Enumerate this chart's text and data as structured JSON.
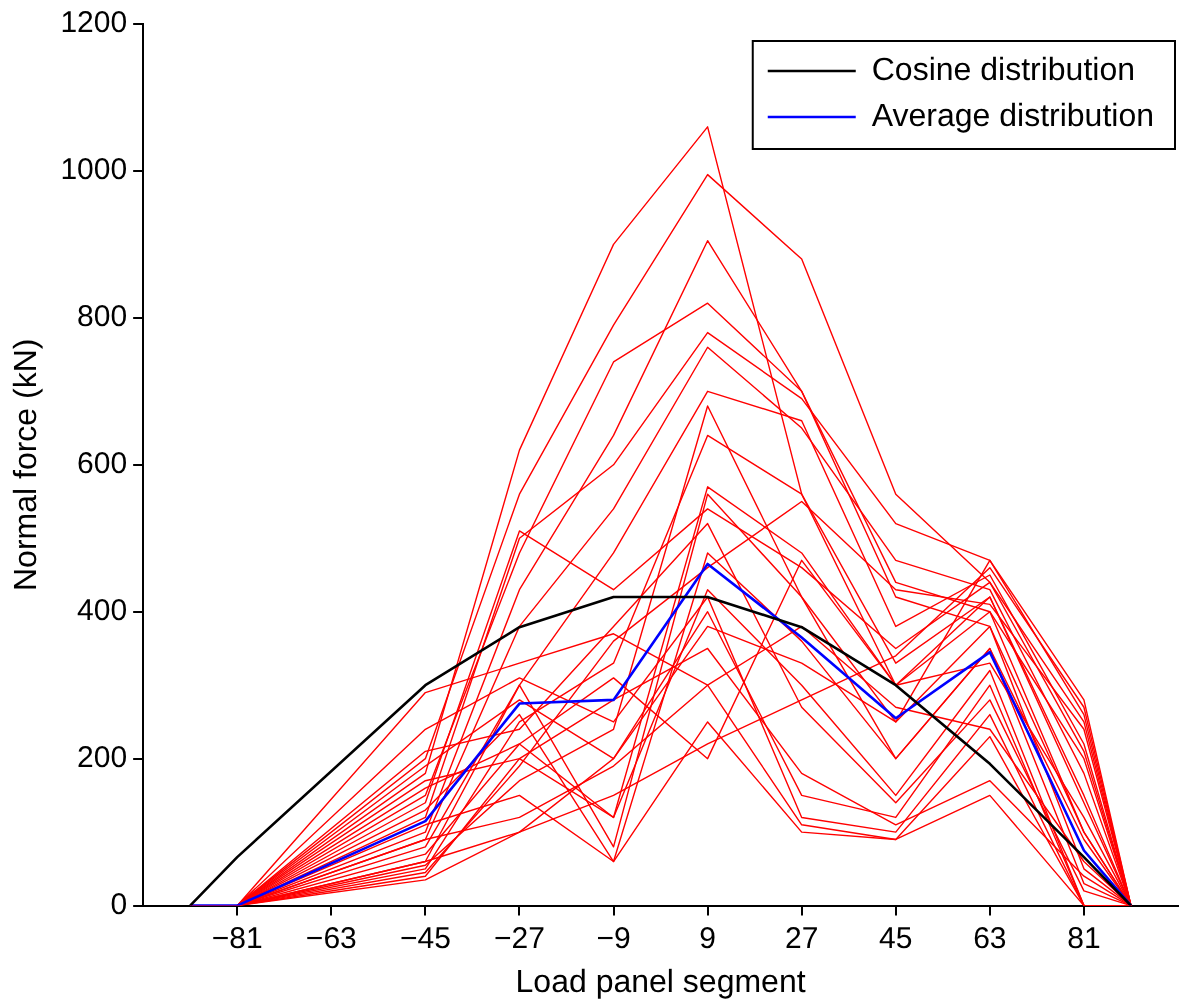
{
  "chart_data": {
    "type": "line",
    "xlabel": "Load panel segment",
    "ylabel": "Normal force (kN)",
    "x": [
      -90,
      -81,
      -45,
      -27,
      -9,
      9,
      27,
      45,
      63,
      81,
      90
    ],
    "xlim": [
      -99,
      99
    ],
    "xticks": [
      -81,
      -63,
      -45,
      -27,
      -9,
      9,
      27,
      45,
      63,
      81
    ],
    "ylim": [
      0,
      1200
    ],
    "yticks": [
      0,
      200,
      400,
      600,
      800,
      1000,
      1200
    ],
    "grid": false,
    "legend": "top right",
    "marker": "none",
    "line_style": "solid",
    "series": [
      {
        "color": "#ff0000",
        "values": [
          0,
          0,
          180,
          620,
          900,
          1060,
          560,
          300,
          420,
          150,
          0
        ]
      },
      {
        "color": "#ff0000",
        "values": [
          0,
          0,
          200,
          560,
          790,
          995,
          880,
          560,
          440,
          250,
          0
        ]
      },
      {
        "color": "#ff0000",
        "values": [
          0,
          0,
          150,
          480,
          740,
          820,
          700,
          440,
          400,
          200,
          0
        ]
      },
      {
        "color": "#ff0000",
        "values": [
          0,
          0,
          100,
          430,
          640,
          905,
          700,
          420,
          380,
          100,
          0
        ]
      },
      {
        "color": "#ff0000",
        "values": [
          0,
          0,
          120,
          500,
          600,
          780,
          690,
          520,
          470,
          260,
          0
        ]
      },
      {
        "color": "#ff0000",
        "values": [
          0,
          0,
          90,
          380,
          540,
          760,
          650,
          470,
          430,
          180,
          0
        ]
      },
      {
        "color": "#ff0000",
        "values": [
          0,
          0,
          60,
          300,
          480,
          700,
          660,
          380,
          450,
          220,
          0
        ]
      },
      {
        "color": "#ff0000",
        "values": [
          0,
          0,
          50,
          250,
          330,
          640,
          560,
          330,
          420,
          140,
          0
        ]
      },
      {
        "color": "#ff0000",
        "values": [
          0,
          0,
          40,
          200,
          120,
          570,
          480,
          300,
          400,
          100,
          0
        ]
      },
      {
        "color": "#ff0000",
        "values": [
          0,
          0,
          80,
          300,
          80,
          560,
          420,
          250,
          380,
          50,
          0
        ]
      },
      {
        "color": "#ff0000",
        "values": [
          0,
          0,
          130,
          260,
          60,
          480,
          360,
          200,
          350,
          30,
          0
        ]
      },
      {
        "color": "#ff0000",
        "values": [
          0,
          0,
          160,
          220,
          120,
          430,
          300,
          150,
          320,
          0,
          0
        ]
      },
      {
        "color": "#ff0000",
        "values": [
          0,
          0,
          190,
          280,
          200,
          400,
          150,
          120,
          300,
          0,
          0
        ]
      },
      {
        "color": "#ff0000",
        "values": [
          0,
          0,
          240,
          310,
          250,
          420,
          120,
          100,
          260,
          0,
          0
        ]
      },
      {
        "color": "#ff0000",
        "values": [
          0,
          0,
          290,
          330,
          370,
          300,
          110,
          90,
          230,
          0,
          0
        ]
      },
      {
        "color": "#ff0000",
        "values": [
          0,
          0,
          210,
          240,
          380,
          520,
          270,
          140,
          280,
          20,
          0
        ]
      },
      {
        "color": "#ff0000",
        "values": [
          0,
          0,
          170,
          200,
          280,
          350,
          180,
          110,
          170,
          40,
          0
        ]
      },
      {
        "color": "#ff0000",
        "values": [
          0,
          0,
          110,
          150,
          60,
          250,
          100,
          90,
          150,
          0,
          0
        ]
      },
      {
        "color": "#ff0000",
        "values": [
          0,
          0,
          60,
          100,
          200,
          380,
          330,
          250,
          470,
          280,
          0
        ]
      },
      {
        "color": "#ff0000",
        "values": [
          0,
          0,
          35,
          100,
          150,
          220,
          280,
          340,
          460,
          270,
          0
        ]
      },
      {
        "color": "#ff0000",
        "values": [
          0,
          0,
          45,
          190,
          360,
          460,
          550,
          430,
          410,
          240,
          0
        ]
      },
      {
        "color": "#ff0000",
        "values": [
          0,
          0,
          140,
          510,
          430,
          540,
          460,
          350,
          440,
          210,
          0
        ]
      },
      {
        "color": "#ff0000",
        "values": [
          0,
          0,
          70,
          220,
          310,
          200,
          470,
          300,
          330,
          120,
          0
        ]
      },
      {
        "color": "#ff0000",
        "values": [
          0,
          0,
          90,
          120,
          190,
          300,
          380,
          270,
          240,
          60,
          0
        ]
      },
      {
        "color": "#ff0000",
        "values": [
          0,
          0,
          55,
          170,
          240,
          680,
          420,
          200,
          350,
          90,
          0
        ]
      },
      {
        "name": "Cosine distribution",
        "color": "#000000",
        "values": [
          0,
          66,
          300,
          379,
          420,
          420,
          379,
          300,
          193,
          66,
          0
        ]
      },
      {
        "name": "Average distribution",
        "color": "#0000ff",
        "values": [
          0,
          0,
          115,
          275,
          280,
          465,
          365,
          255,
          345,
          75,
          0
        ]
      }
    ]
  }
}
